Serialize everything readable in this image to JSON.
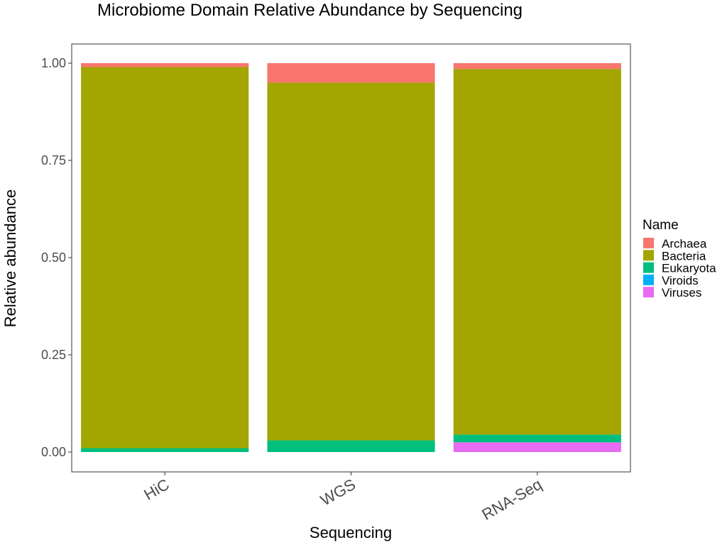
{
  "chart_data": {
    "type": "bar",
    "stacked": true,
    "title": "Microbiome Domain Relative Abundance by Sequencing",
    "xlabel": "Sequencing",
    "ylabel": "Relative abundance",
    "ylim": [
      0,
      1.0
    ],
    "yticks": [
      0.0,
      0.25,
      0.5,
      0.75,
      1.0
    ],
    "ytick_labels": [
      "0.00",
      "0.25",
      "0.50",
      "0.75",
      "1.00"
    ],
    "categories": [
      "HiC",
      "WGS",
      "RNA-Seq"
    ],
    "grid": false,
    "legend": {
      "title": "Name",
      "position": "right"
    },
    "stack_order_bottom_to_top": [
      "Viruses",
      "Viroids",
      "Eukaryota",
      "Bacteria",
      "Archaea"
    ],
    "series": [
      {
        "name": "Archaea",
        "color": "#F8766D",
        "values": [
          0.01,
          0.05,
          0.015
        ]
      },
      {
        "name": "Bacteria",
        "color": "#A3A500",
        "values": [
          0.98,
          0.92,
          0.94
        ]
      },
      {
        "name": "Eukaryota",
        "color": "#00BF7D",
        "values": [
          0.01,
          0.03,
          0.02
        ]
      },
      {
        "name": "Viroids",
        "color": "#00B0F6",
        "values": [
          0.0,
          0.0,
          0.0
        ]
      },
      {
        "name": "Viruses",
        "color": "#E76BF3",
        "values": [
          0.0,
          0.0,
          0.025
        ]
      }
    ]
  }
}
